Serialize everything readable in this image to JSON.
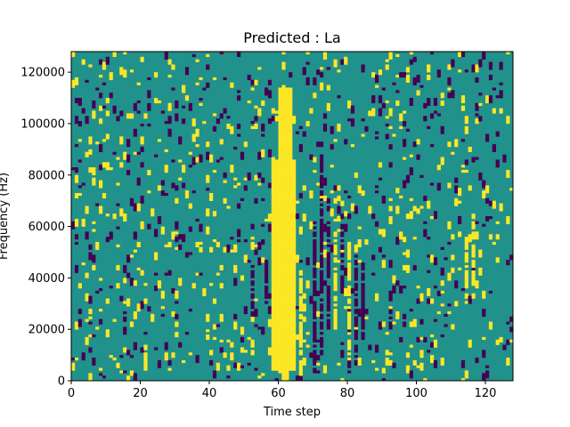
{
  "chart_data": {
    "type": "heatmap",
    "title": "Predicted : La",
    "xlabel": "Time step",
    "ylabel": "Frequency (Hz)",
    "xlim": [
      0,
      128
    ],
    "ylim": [
      0,
      128000
    ],
    "x_ticks": [
      0,
      20,
      40,
      60,
      80,
      100,
      120
    ],
    "y_ticks": [
      0,
      20000,
      40000,
      60000,
      80000,
      100000,
      120000
    ],
    "grid": false,
    "legend": "none",
    "colormap": "viridis",
    "colors": {
      "background": "#21918c",
      "high": "#fde725",
      "low": "#440154"
    },
    "n_time_steps": 128,
    "n_freq_bins": 128,
    "freq_bin_width_hz": 1000,
    "values_note_levels": {
      "low": -1,
      "mid": 0,
      "high": 1
    },
    "bands": [
      {
        "x_start": 58,
        "x_end": 65,
        "y_start": 4000,
        "y_end": 86000,
        "value": 1
      },
      {
        "x_start": 60,
        "x_end": 64,
        "y_start": 86000,
        "y_end": 114000,
        "value": 1
      },
      {
        "x_start": 61,
        "x_end": 63,
        "y_start": 0,
        "y_end": 4000,
        "value": 1
      }
    ],
    "streaks": [
      {
        "x": 70,
        "y_start": 2000,
        "y_end": 62000,
        "value": -1
      },
      {
        "x": 72,
        "y_start": 10000,
        "y_end": 88000,
        "value": -1
      },
      {
        "x": 74,
        "y_start": 20000,
        "y_end": 72000,
        "value": -1
      },
      {
        "x": 78,
        "y_start": 34000,
        "y_end": 66000,
        "value": -1
      },
      {
        "x": 82,
        "y_start": 6000,
        "y_end": 50000,
        "value": -1
      },
      {
        "x": 84,
        "y_start": 16000,
        "y_end": 46000,
        "value": -1
      },
      {
        "x": 66,
        "y_start": 2000,
        "y_end": 40000,
        "value": 1
      },
      {
        "x": 76,
        "y_start": 18000,
        "y_end": 58000,
        "value": 1
      },
      {
        "x": 80,
        "y_start": 8000,
        "y_end": 52000,
        "value": 1
      },
      {
        "x": 52,
        "y_start": 24000,
        "y_end": 46000,
        "value": -1
      },
      {
        "x": 56,
        "y_start": 30000,
        "y_end": 48000,
        "value": -1
      },
      {
        "x": 114,
        "y_start": 30000,
        "y_end": 56000,
        "value": 1
      },
      {
        "x": 116,
        "y_start": 36000,
        "y_end": 60000,
        "value": 1
      },
      {
        "x": 21,
        "y_start": 4000,
        "y_end": 12000,
        "value": 1
      },
      {
        "x": 92,
        "y_start": 20000,
        "y_end": 36000,
        "value": -1
      }
    ],
    "speckle": {
      "density": 0.075,
      "high_share": 0.5,
      "seed": 7
    }
  }
}
